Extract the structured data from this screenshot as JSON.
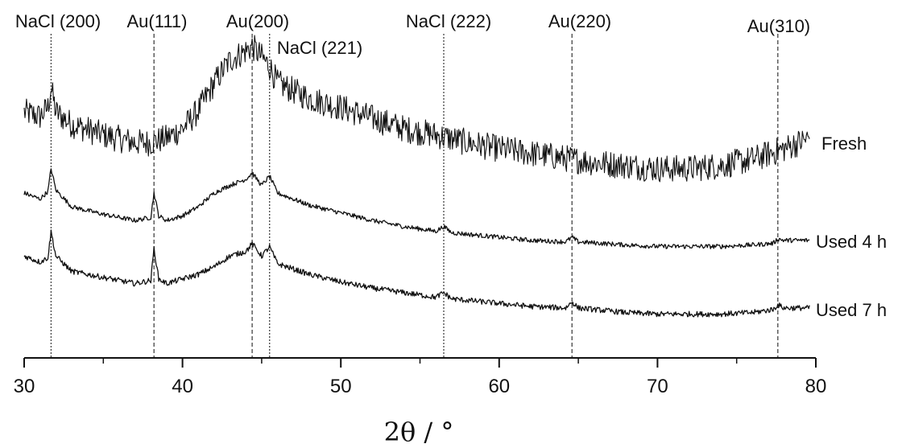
{
  "chart_data": {
    "type": "line",
    "xlabel": "2θ / °",
    "ylabel": "",
    "xlim": [
      30,
      80
    ],
    "x_ticks": [
      "30",
      "40",
      "50",
      "60",
      "70",
      "80"
    ],
    "grid": false,
    "y_ticks_shown": false,
    "reference_lines": [
      {
        "label": "NaCl (200)",
        "x": 31.7,
        "style": "dotted"
      },
      {
        "label": "Au(111)",
        "x": 38.2,
        "style": "dashed"
      },
      {
        "label": "Au(200)",
        "x": 44.4,
        "style": "dashed"
      },
      {
        "label": "NaCl (221)",
        "x": 45.5,
        "style": "dotted"
      },
      {
        "label": "NaCl (222)",
        "x": 56.5,
        "style": "dotted"
      },
      {
        "label": "Au(220)",
        "x": 64.6,
        "style": "dashed"
      },
      {
        "label": "Au(310)",
        "x": 77.6,
        "style": "dashed"
      }
    ],
    "series": [
      {
        "name": "Fresh",
        "noise": 0.9,
        "points": [
          [
            30,
            4.3
          ],
          [
            31,
            4.0
          ],
          [
            31.5,
            4.6
          ],
          [
            31.7,
            5.9
          ],
          [
            32,
            4.3
          ],
          [
            33,
            3.5
          ],
          [
            35,
            2.8
          ],
          [
            37,
            2.3
          ],
          [
            38,
            2.3
          ],
          [
            39,
            2.6
          ],
          [
            40,
            3.2
          ],
          [
            41,
            4.4
          ],
          [
            42,
            6.2
          ],
          [
            43,
            7.7
          ],
          [
            44,
            8.3
          ],
          [
            44.4,
            8.6
          ],
          [
            45,
            7.9
          ],
          [
            45.5,
            7.3
          ],
          [
            46,
            6.2
          ],
          [
            48,
            5.2
          ],
          [
            50,
            4.6
          ],
          [
            52,
            3.9
          ],
          [
            54,
            3.2
          ],
          [
            56,
            2.8
          ],
          [
            58,
            2.3
          ],
          [
            60,
            1.9
          ],
          [
            62,
            1.6
          ],
          [
            64,
            1.3
          ],
          [
            66,
            1.0
          ],
          [
            68,
            0.8
          ],
          [
            70,
            0.6
          ],
          [
            72,
            0.6
          ],
          [
            74,
            0.8
          ],
          [
            76,
            1.2
          ],
          [
            78,
            1.9
          ],
          [
            79.6,
            2.6
          ]
        ]
      },
      {
        "name": "Used 4 h",
        "noise": 0.15,
        "points": [
          [
            30,
            3.9
          ],
          [
            31,
            3.5
          ],
          [
            31.5,
            4.0
          ],
          [
            31.7,
            5.5
          ],
          [
            32,
            4.1
          ],
          [
            33,
            3.0
          ],
          [
            35,
            2.5
          ],
          [
            37,
            2.1
          ],
          [
            38,
            2.3
          ],
          [
            38.2,
            3.9
          ],
          [
            38.5,
            2.4
          ],
          [
            39,
            2.1
          ],
          [
            40,
            2.4
          ],
          [
            41,
            3.0
          ],
          [
            42,
            3.9
          ],
          [
            43,
            4.4
          ],
          [
            44,
            4.8
          ],
          [
            44.4,
            5.2
          ],
          [
            45,
            4.4
          ],
          [
            45.5,
            5.0
          ],
          [
            46,
            3.9
          ],
          [
            48,
            3.1
          ],
          [
            50,
            2.6
          ],
          [
            52,
            2.1
          ],
          [
            54,
            1.7
          ],
          [
            56,
            1.4
          ],
          [
            56.5,
            1.7
          ],
          [
            57,
            1.3
          ],
          [
            60,
            1.0
          ],
          [
            62,
            0.8
          ],
          [
            64.2,
            0.7
          ],
          [
            64.6,
            1.0
          ],
          [
            65,
            0.7
          ],
          [
            68,
            0.5
          ],
          [
            70,
            0.4
          ],
          [
            72,
            0.4
          ],
          [
            74,
            0.4
          ],
          [
            76,
            0.5
          ],
          [
            77.3,
            0.6
          ],
          [
            77.6,
            0.9
          ],
          [
            78,
            0.8
          ],
          [
            79.6,
            0.8
          ]
        ]
      },
      {
        "name": "Used 7 h",
        "noise": 0.18,
        "points": [
          [
            30,
            4.3
          ],
          [
            31,
            3.9
          ],
          [
            31.5,
            4.2
          ],
          [
            31.7,
            5.9
          ],
          [
            32,
            4.3
          ],
          [
            33,
            3.3
          ],
          [
            35,
            2.9
          ],
          [
            37,
            2.5
          ],
          [
            38,
            2.7
          ],
          [
            38.2,
            4.8
          ],
          [
            38.5,
            2.8
          ],
          [
            39,
            2.5
          ],
          [
            40,
            2.8
          ],
          [
            41,
            3.1
          ],
          [
            42,
            3.6
          ],
          [
            43,
            4.3
          ],
          [
            44,
            4.6
          ],
          [
            44.4,
            5.1
          ],
          [
            45,
            4.3
          ],
          [
            45.5,
            4.9
          ],
          [
            46,
            3.8
          ],
          [
            48,
            3.1
          ],
          [
            50,
            2.6
          ],
          [
            52,
            2.2
          ],
          [
            54,
            1.9
          ],
          [
            56,
            1.6
          ],
          [
            56.5,
            1.9
          ],
          [
            57,
            1.5
          ],
          [
            60,
            1.2
          ],
          [
            62,
            1.0
          ],
          [
            64.2,
            0.9
          ],
          [
            64.6,
            1.3
          ],
          [
            65,
            0.9
          ],
          [
            68,
            0.6
          ],
          [
            70,
            0.5
          ],
          [
            72,
            0.5
          ],
          [
            74,
            0.5
          ],
          [
            76,
            0.6
          ],
          [
            77.3,
            0.8
          ],
          [
            77.6,
            1.1
          ],
          [
            78,
            0.9
          ],
          [
            79.6,
            0.9
          ]
        ]
      }
    ]
  }
}
